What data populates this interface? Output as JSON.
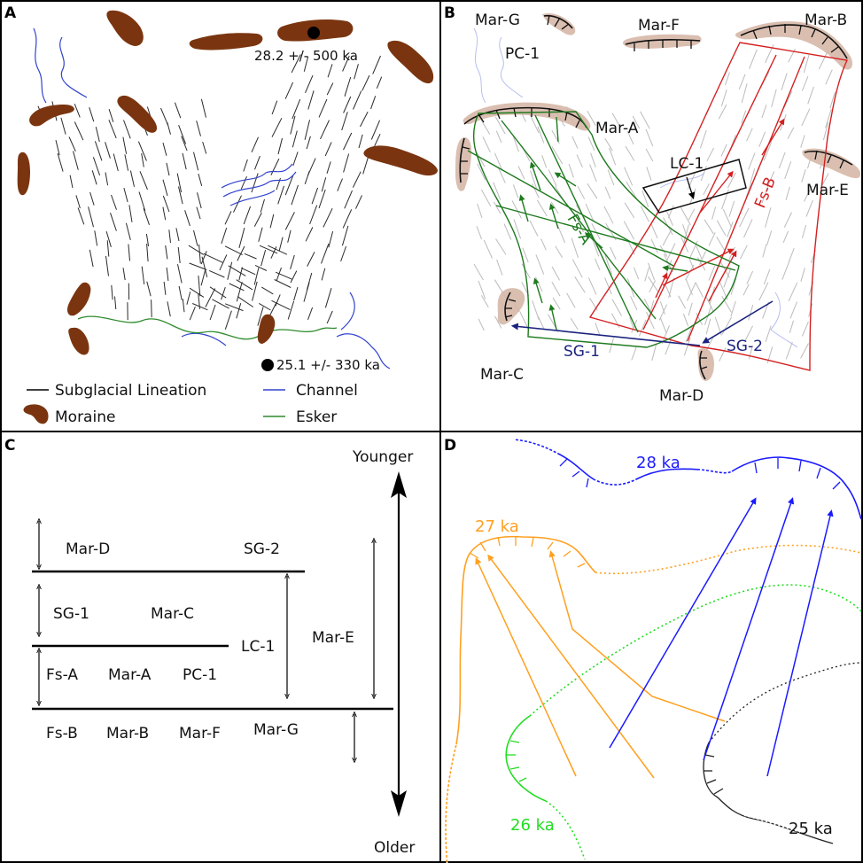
{
  "panels": {
    "A": {
      "letter": "A",
      "dates": [
        "28.2 +/- 500 ka",
        "25.1 +/- 330 ka"
      ],
      "legend": {
        "lineation": "Subglacial Lineation",
        "channel": "Channel",
        "moraine": "Moraine",
        "esker": "Esker"
      }
    },
    "B": {
      "letter": "B",
      "labels": {
        "mar_g": "Mar-G",
        "mar_f": "Mar-F",
        "mar_b": "Mar-B",
        "pc_1": "PC-1",
        "mar_a": "Mar-A",
        "lc_1": "LC-1",
        "fs_b": "Fs-B",
        "mar_e": "Mar-E",
        "fs_a": "Fs-A",
        "mar_c": "Mar-C",
        "sg_1": "SG-1",
        "sg_2": "SG-2",
        "mar_d": "Mar-D"
      }
    },
    "C": {
      "letter": "C",
      "younger": "Younger",
      "older": "Older",
      "labels": {
        "mar_d": "Mar-D",
        "sg_2": "SG-2",
        "sg_1": "SG-1",
        "mar_c": "Mar-C",
        "lc_1": "LC-1",
        "mar_e": "Mar-E",
        "fs_a": "Fs-A",
        "mar_a": "Mar-A",
        "pc_1": "PC-1",
        "fs_b": "Fs-B",
        "mar_b": "Mar-B",
        "mar_f": "Mar-F",
        "mar_g": "Mar-G"
      }
    },
    "D": {
      "letter": "D",
      "ages": {
        "a28": "28 ka",
        "a27": "27 ka",
        "a26": "26 ka",
        "a25": "25 ka"
      }
    }
  },
  "colors": {
    "moraine": "#7a3510",
    "channel": "#3344cc",
    "esker": "#2e8b2e",
    "fs_a": "#1e7a1e",
    "fs_b": "#d42020",
    "sg": "#1a237e",
    "age28": "#1a1aff",
    "age27": "#ffa020",
    "age26": "#22dd22",
    "age25": "#222222"
  }
}
